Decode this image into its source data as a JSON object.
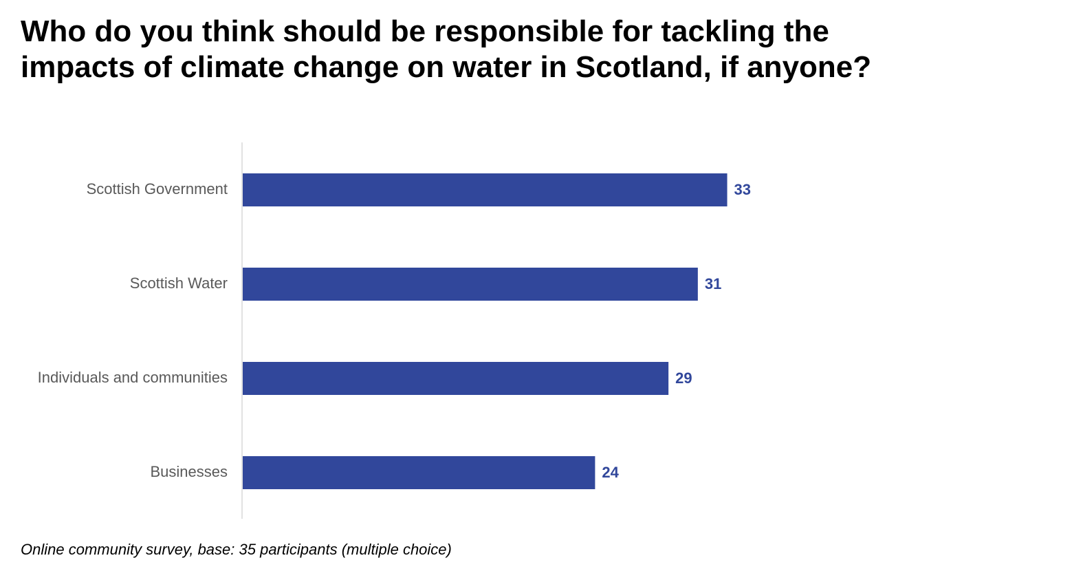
{
  "chart_data": {
    "type": "bar",
    "orientation": "horizontal",
    "title": "Who do you think should be responsible for tackling the impacts of climate change on water in Scotland, if anyone?",
    "categories": [
      "Scottish Government",
      "Scottish Water",
      "Individuals and communities",
      "Businesses"
    ],
    "values": [
      33,
      31,
      29,
      24
    ],
    "xlim": [
      0,
      50
    ],
    "grid": false,
    "legend": "none",
    "bar_color": "#31479b",
    "label_color": "#31479b",
    "footnote": "Online community survey, base: 35 participants (multiple choice)"
  }
}
